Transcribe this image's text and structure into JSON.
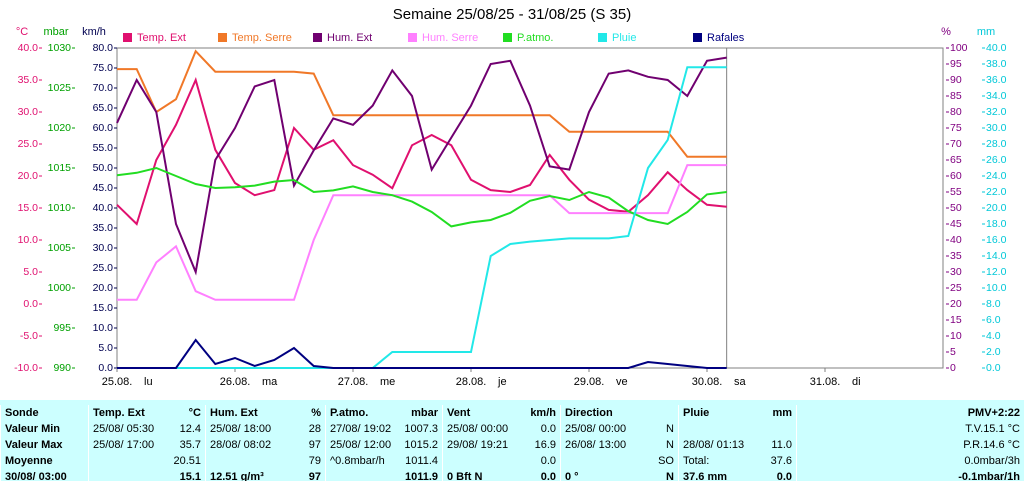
{
  "chart_data": {
    "type": "line",
    "title": "Semaine 25/08/25 - 31/08/25 (S 35)",
    "xlim": [
      0,
      168
    ],
    "xticks": [
      {
        "value": 0,
        "label": "25.08."
      },
      {
        "value": 24,
        "label": "26.08."
      },
      {
        "value": 48,
        "label": "27.08."
      },
      {
        "value": 72,
        "label": "28.08."
      },
      {
        "value": 96,
        "label": "29.08."
      },
      {
        "value": 120,
        "label": "30.08."
      },
      {
        "value": 144,
        "label": "31.08."
      }
    ],
    "day_names": [
      "lu",
      "ma",
      "me",
      "je",
      "ve",
      "sa",
      "di"
    ],
    "axes": [
      {
        "unit": "°C",
        "color": "#e0106f",
        "lim": [
          -10,
          40
        ],
        "ticks": [
          {
            "value": -10,
            "label": "-10.0"
          },
          {
            "value": -5,
            "label": "-5.0"
          },
          {
            "value": 0,
            "label": "0.0"
          },
          {
            "value": 5,
            "label": "5.0"
          },
          {
            "value": 10,
            "label": "10.0"
          },
          {
            "value": 15,
            "label": "15.0"
          },
          {
            "value": 20,
            "label": "20.0"
          },
          {
            "value": 25,
            "label": "25.0"
          },
          {
            "value": 30,
            "label": "30.0"
          },
          {
            "value": 35,
            "label": "35.0"
          },
          {
            "value": 40,
            "label": "40.0"
          }
        ]
      },
      {
        "unit": "mbar",
        "color": "#00a000",
        "lim": [
          990,
          1030
        ],
        "ticks": [
          990,
          995,
          1000,
          1005,
          1010,
          1015,
          1020,
          1025,
          1030
        ]
      },
      {
        "unit": "km/h",
        "color": "#000050",
        "lim": [
          0,
          80
        ],
        "ticks": [
          {
            "value": 0,
            "label": "0.0"
          },
          {
            "value": 5,
            "label": "5.0"
          },
          {
            "value": 10,
            "label": "10.0"
          },
          {
            "value": 15,
            "label": "15.0"
          },
          {
            "value": 20,
            "label": "20.0"
          },
          {
            "value": 25,
            "label": "25.0"
          },
          {
            "value": 30,
            "label": "30.0"
          },
          {
            "value": 35,
            "label": "35.0"
          },
          {
            "value": 40,
            "label": "40.0"
          },
          {
            "value": 45,
            "label": "45.0"
          },
          {
            "value": 50,
            "label": "50.0"
          },
          {
            "value": 55,
            "label": "55.0"
          },
          {
            "value": 60,
            "label": "60.0"
          },
          {
            "value": 65,
            "label": "65.0"
          },
          {
            "value": 70,
            "label": "70.0"
          },
          {
            "value": 75,
            "label": "75.0"
          },
          {
            "value": 80,
            "label": "80.0"
          }
        ]
      },
      {
        "unit": "%",
        "color": "#800080",
        "lim": [
          0,
          100
        ],
        "ticks": [
          0,
          5,
          10,
          15,
          20,
          25,
          30,
          35,
          40,
          45,
          50,
          55,
          60,
          65,
          70,
          75,
          80,
          85,
          90,
          95,
          100
        ]
      },
      {
        "unit": "mm",
        "color": "#00c8d8",
        "lim": [
          0,
          40
        ],
        "ticks": [
          {
            "value": 0,
            "label": "0.0"
          },
          {
            "value": 2,
            "label": "2.0"
          },
          {
            "value": 4,
            "label": "4.0"
          },
          {
            "value": 6,
            "label": "6.0"
          },
          {
            "value": 8,
            "label": "8.0"
          },
          {
            "value": 10,
            "label": "10.0"
          },
          {
            "value": 12,
            "label": "12.0"
          },
          {
            "value": 14,
            "label": "14.0"
          },
          {
            "value": 16,
            "label": "16.0"
          },
          {
            "value": 18,
            "label": "18.0"
          },
          {
            "value": 20,
            "label": "20.0"
          },
          {
            "value": 22,
            "label": "22.0"
          },
          {
            "value": 24,
            "label": "24.0"
          },
          {
            "value": 26,
            "label": "26.0"
          },
          {
            "value": 28,
            "label": "28.0"
          },
          {
            "value": 30,
            "label": "30.0"
          },
          {
            "value": 32,
            "label": "32.0"
          },
          {
            "value": 34,
            "label": "34.0"
          },
          {
            "value": 36,
            "label": "36.0"
          },
          {
            "value": 38,
            "label": "38.0"
          },
          {
            "value": 40,
            "label": "40.0"
          }
        ]
      }
    ],
    "x": [
      0,
      4,
      8,
      12,
      16,
      20,
      24,
      28,
      32,
      36,
      40,
      44,
      48,
      52,
      56,
      60,
      64,
      68,
      72,
      76,
      80,
      84,
      88,
      92,
      96,
      100,
      104,
      108,
      112,
      116,
      120,
      124
    ],
    "series": [
      {
        "name": "Temp. Ext",
        "color": "#e0106f",
        "axis": "°C",
        "values": [
          15.5,
          12.5,
          22.5,
          28.0,
          35.0,
          24.1,
          18.9,
          17.0,
          17.8,
          27.5,
          24.1,
          25.6,
          21.7,
          20.2,
          18.1,
          24.8,
          26.4,
          24.8,
          19.4,
          17.8,
          17.5,
          18.6,
          23.3,
          19.4,
          16.3,
          14.7,
          14.4,
          17.0,
          20.6,
          17.8,
          15.5,
          15.2
        ]
      },
      {
        "name": "Temp. Serre",
        "color": "#f07828",
        "axis": "°C",
        "values": [
          36.7,
          36.7,
          30.0,
          32.0,
          39.5,
          36.3,
          36.3,
          36.3,
          36.3,
          36.3,
          36.0,
          29.5,
          29.5,
          29.5,
          29.5,
          29.5,
          29.5,
          29.5,
          29.5,
          29.5,
          29.5,
          29.5,
          29.5,
          26.9,
          26.9,
          26.9,
          26.9,
          26.9,
          26.9,
          23.0,
          23.0,
          23.0
        ]
      },
      {
        "name": "Hum. Ext",
        "color": "#700070",
        "axis": "%",
        "values": [
          76.6,
          90,
          80,
          45,
          30,
          65,
          75,
          88,
          90,
          57,
          68,
          78,
          76,
          82,
          93,
          85,
          62,
          72,
          82,
          95,
          96,
          82,
          63,
          62,
          80,
          92,
          93,
          91,
          90,
          85,
          96,
          97
        ]
      },
      {
        "name": "Hum. Serre",
        "color": "#ff80ff",
        "axis": "%",
        "values": [
          21.3,
          21.3,
          33,
          38,
          24,
          21.3,
          21.3,
          21.3,
          21.3,
          21.3,
          40,
          54,
          54,
          54,
          54,
          54,
          54,
          54,
          54,
          54,
          54,
          54,
          54,
          48.4,
          48.4,
          48.4,
          48.4,
          48.4,
          48.4,
          63.4,
          63.4,
          63.4
        ]
      },
      {
        "name": "P.atmo.",
        "color": "#22dd22",
        "axis": "mbar",
        "values": [
          1014.1,
          1014.4,
          1015.0,
          1014.0,
          1013.0,
          1012.5,
          1012.6,
          1012.8,
          1013.3,
          1013.5,
          1012.0,
          1012.2,
          1012.7,
          1012.0,
          1011.6,
          1010.8,
          1009.5,
          1007.7,
          1008.2,
          1008.5,
          1009.4,
          1010.9,
          1011.5,
          1011.0,
          1012.0,
          1011.3,
          1009.6,
          1008.5,
          1008.0,
          1009.5,
          1011.7,
          1012.0
        ]
      },
      {
        "name": "Pluie",
        "color": "#22e8e8",
        "axis": "mm",
        "values": [
          0,
          0,
          0,
          0,
          0,
          0,
          0,
          0,
          0,
          0,
          0,
          0,
          0,
          0,
          2.0,
          2.0,
          2.0,
          2.0,
          2.0,
          14.0,
          15.5,
          15.8,
          16.0,
          16.2,
          16.2,
          16.2,
          16.5,
          25,
          28.5,
          37.6,
          37.6,
          37.6
        ]
      },
      {
        "name": "Rafales",
        "color": "#000080",
        "axis": "km/h",
        "values": [
          0,
          0,
          0,
          0,
          7.0,
          1.0,
          2.5,
          0.5,
          2.0,
          5.0,
          0.5,
          0,
          0,
          0,
          0,
          0,
          0,
          0,
          0,
          0,
          0,
          0,
          0,
          0,
          0,
          0,
          0,
          1.5,
          1.0,
          0.5,
          0,
          0
        ]
      }
    ]
  },
  "table": {
    "header": [
      {
        "left": "Sonde"
      },
      {
        "left": "Temp. Ext",
        "right": "°C"
      },
      {
        "left": "Hum. Ext",
        "right": "%"
      },
      {
        "left": "P.atmo.",
        "right": "mbar"
      },
      {
        "left": "Vent",
        "right": "km/h"
      },
      {
        "left": "Direction"
      },
      {
        "left": "Pluie",
        "right": "mm"
      },
      {
        "right": "PMV+2:22"
      }
    ],
    "rows": [
      [
        {
          "left": "Valeur Min"
        },
        {
          "left": "25/08/ 05:30",
          "right": "12.4"
        },
        {
          "left": "25/08/ 18:00",
          "right": "28"
        },
        {
          "left": "27/08/ 19:02",
          "right": "1007.3"
        },
        {
          "left": "25/08/ 00:00",
          "right": "0.0"
        },
        {
          "left": "25/08/ 00:00",
          "right": "N"
        },
        {},
        {
          "right": "T.V.15.1 °C"
        }
      ],
      [
        {
          "left": "Valeur Max"
        },
        {
          "left": "25/08/ 17:00",
          "right": "35.7"
        },
        {
          "left": "28/08/ 08:02",
          "right": "97"
        },
        {
          "left": "25/08/ 12:00",
          "right": "1015.2"
        },
        {
          "left": "29/08/ 19:21",
          "right": "16.9"
        },
        {
          "left": "26/08/ 13:00",
          "right": "N"
        },
        {
          "left": "28/08/ 01:13",
          "right": "11.0"
        },
        {
          "right": "P.R.14.6 °C"
        }
      ],
      [
        {
          "left": "Moyenne"
        },
        {
          "right": "20.51"
        },
        {
          "right": "79"
        },
        {
          "left": "^0.8mbar/h",
          "right": "1011.4"
        },
        {
          "right": "0.0"
        },
        {
          "right": "SO"
        },
        {
          "left": "Total:",
          "right": "37.6"
        },
        {
          "right": "0.0mbar/3h"
        }
      ],
      [
        {
          "left": "30/08/ 03:00"
        },
        {
          "right": "15.1"
        },
        {
          "left": "12.51 g/m³",
          "right": "97"
        },
        {
          "right": "1011.9"
        },
        {
          "left": "0 Bft N",
          "right": "0.0"
        },
        {
          "left": "0 °",
          "right": "N"
        },
        {
          "left": "37.6 mm",
          "right": "0.0"
        },
        {
          "right": "-0.1mbar/1h"
        }
      ]
    ]
  }
}
